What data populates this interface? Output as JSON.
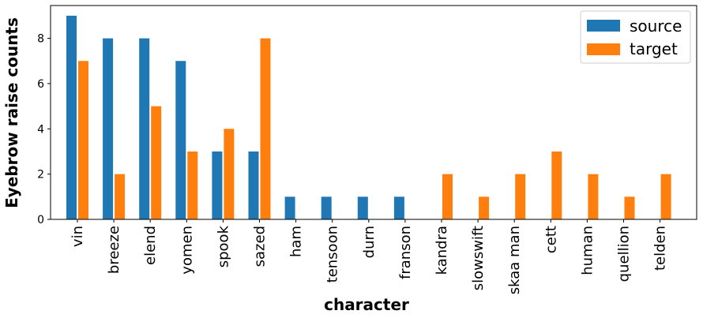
{
  "chart_data": {
    "type": "bar",
    "categories": [
      "vin",
      "breeze",
      "elend",
      "yomen",
      "spook",
      "sazed",
      "ham",
      "tensoon",
      "durn",
      "franson",
      "kandra",
      "slowswift",
      "skaa man",
      "cett",
      "human",
      "quellion",
      "telden"
    ],
    "series": [
      {
        "name": "source",
        "color": "#1f77b4",
        "values": [
          9,
          8,
          8,
          7,
          3,
          3,
          1,
          1,
          1,
          1,
          0,
          0,
          0,
          0,
          0,
          0,
          0
        ]
      },
      {
        "name": "target",
        "color": "#ff7f0e",
        "values": [
          7,
          2,
          5,
          3,
          4,
          8,
          0,
          0,
          0,
          0,
          2,
          1,
          2,
          3,
          2,
          1,
          2
        ]
      }
    ],
    "title": "",
    "xlabel": "character",
    "ylabel": "Eyebrow raise counts",
    "ylim": [
      0,
      9.45
    ],
    "yticks": [
      "0",
      "2",
      "4",
      "6",
      "8"
    ],
    "legend_position": "top-right",
    "grid": false
  }
}
